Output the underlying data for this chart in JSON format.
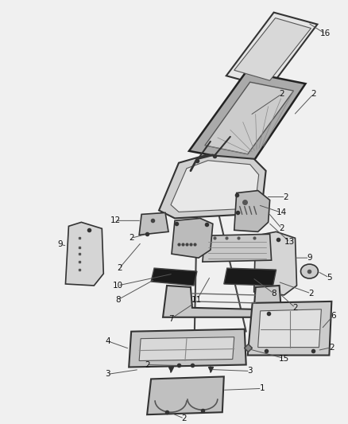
{
  "background_color": "#f0f0f0",
  "fig_width": 4.38,
  "fig_height": 5.33,
  "dpi": 100,
  "line_color": "#444444",
  "label_color": "#333333",
  "label_fontsize": 7.5,
  "part_edge_color": "#333333",
  "part_face_light": "#e8e8e8",
  "part_face_mid": "#cccccc",
  "part_face_dark": "#222222"
}
